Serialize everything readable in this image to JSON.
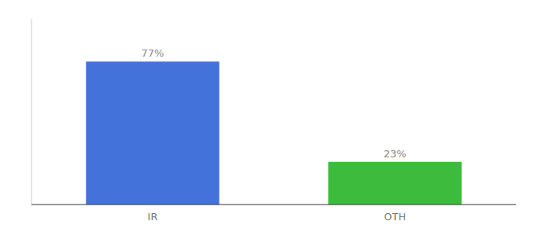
{
  "chart_data": {
    "type": "bar",
    "categories": [
      "IR",
      "OTH"
    ],
    "values": [
      77,
      23
    ],
    "value_labels": [
      "77%",
      "23%"
    ],
    "colors": [
      "#4472db",
      "#3dbb3d"
    ],
    "ylim": [
      0,
      100
    ],
    "data_labels": true,
    "tick_labels": "x"
  }
}
